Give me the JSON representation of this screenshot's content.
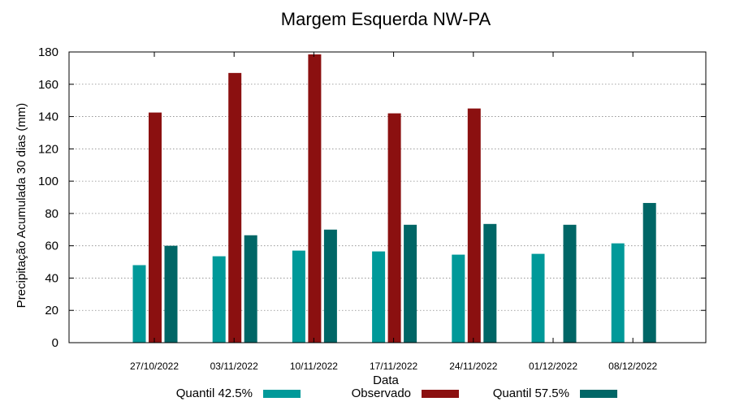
{
  "chart_data": {
    "type": "bar",
    "title": "Margem Esquerda NW-PA",
    "xlabel": "Data",
    "ylabel": "Precipitação Acumulada 30 dias (mm)",
    "ylim": [
      0,
      180
    ],
    "yticks": [
      0,
      20,
      40,
      60,
      80,
      100,
      120,
      140,
      160,
      180
    ],
    "grid": true,
    "legend_position": "bottom",
    "categories": [
      "27/10/2022",
      "03/11/2022",
      "10/11/2022",
      "17/11/2022",
      "24/11/2022",
      "01/12/2022",
      "08/12/2022"
    ],
    "series": [
      {
        "name": "Quantil 42.5%",
        "color": "#009999",
        "values": [
          48,
          53.5,
          57,
          56.5,
          54.5,
          55,
          61.5
        ]
      },
      {
        "name": "Observado",
        "color": "#8b1010",
        "values": [
          142.5,
          167,
          178.5,
          142,
          145,
          null,
          null
        ]
      },
      {
        "name": "Quantil 57.5%",
        "color": "#006666",
        "values": [
          60,
          66.5,
          70,
          73,
          73.5,
          73,
          86.5
        ]
      }
    ]
  }
}
